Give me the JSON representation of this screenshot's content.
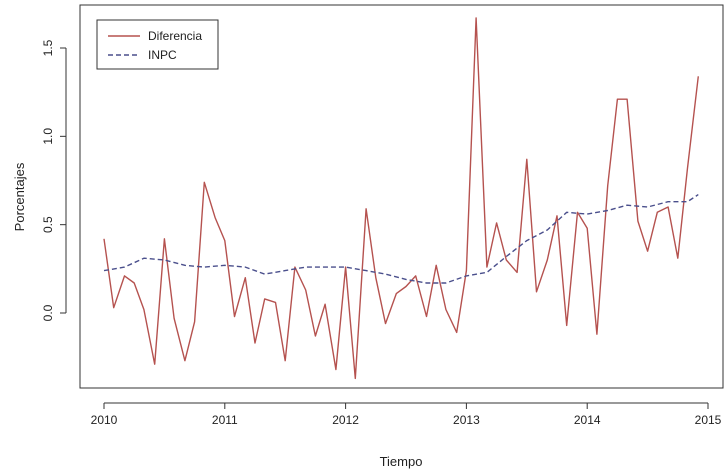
{
  "chart_data": {
    "type": "line",
    "title": "",
    "xlabel": "Tiempo",
    "ylabel": "Porcentajes",
    "xlim": [
      2010,
      2015
    ],
    "ylim": [
      -0.4,
      1.7
    ],
    "x_ticks": [
      2010,
      2011,
      2012,
      2013,
      2014,
      2015
    ],
    "x_tick_labels": [
      "2010",
      "2011",
      "2012",
      "2013",
      "2014",
      "2015"
    ],
    "y_ticks": [
      0.0,
      0.5,
      1.0,
      1.5
    ],
    "y_tick_labels": [
      "0.0",
      "0.5",
      "1.0",
      "1.5"
    ],
    "legend_position": "top-left",
    "series": [
      {
        "name": "Diferencia",
        "color": "#b5524f",
        "dash": "solid",
        "x": [
          2010.0,
          2010.08,
          2010.17,
          2010.25,
          2010.33,
          2010.42,
          2010.5,
          2010.58,
          2010.67,
          2010.75,
          2010.83,
          2010.92,
          2011.0,
          2011.08,
          2011.17,
          2011.25,
          2011.33,
          2011.42,
          2011.5,
          2011.58,
          2011.67,
          2011.75,
          2011.83,
          2011.92,
          2012.0,
          2012.08,
          2012.17,
          2012.25,
          2012.33,
          2012.42,
          2012.5,
          2012.58,
          2012.67,
          2012.75,
          2012.83,
          2012.92,
          2013.0,
          2013.08,
          2013.17,
          2013.25,
          2013.33,
          2013.42,
          2013.5,
          2013.58,
          2013.67,
          2013.75,
          2013.83,
          2013.92,
          2014.0,
          2014.08,
          2014.17,
          2014.25,
          2014.33,
          2014.42,
          2014.5,
          2014.58,
          2014.67,
          2014.75,
          2014.83,
          2014.92
        ],
        "values": [
          0.42,
          0.03,
          0.21,
          0.17,
          0.02,
          -0.29,
          0.42,
          -0.03,
          -0.27,
          -0.05,
          0.74,
          0.54,
          0.41,
          -0.02,
          0.2,
          -0.17,
          0.08,
          0.06,
          -0.27,
          0.26,
          0.13,
          -0.13,
          0.05,
          -0.32,
          0.26,
          -0.37,
          0.59,
          0.2,
          -0.06,
          0.11,
          0.15,
          0.21,
          -0.02,
          0.27,
          0.02,
          -0.11,
          0.24,
          1.67,
          0.26,
          0.51,
          0.3,
          0.23,
          0.87,
          0.12,
          0.3,
          0.55,
          -0.07,
          0.57,
          0.48,
          -0.12,
          0.72,
          1.21,
          1.21,
          0.52,
          0.35,
          0.57,
          0.6,
          0.31,
          0.82,
          1.34
        ]
      },
      {
        "name": "INPC",
        "color": "#4a4f8c",
        "dash": "dashed",
        "x": [
          2010.0,
          2010.17,
          2010.33,
          2010.5,
          2010.67,
          2010.83,
          2011.0,
          2011.17,
          2011.33,
          2011.5,
          2011.67,
          2011.83,
          2012.0,
          2012.17,
          2012.33,
          2012.5,
          2012.67,
          2012.83,
          2013.0,
          2013.17,
          2013.33,
          2013.5,
          2013.67,
          2013.83,
          2014.0,
          2014.17,
          2014.33,
          2014.5,
          2014.67,
          2014.83,
          2014.92
        ],
        "values": [
          0.24,
          0.26,
          0.31,
          0.3,
          0.27,
          0.26,
          0.27,
          0.26,
          0.22,
          0.24,
          0.26,
          0.26,
          0.26,
          0.24,
          0.22,
          0.19,
          0.17,
          0.17,
          0.21,
          0.23,
          0.32,
          0.41,
          0.47,
          0.57,
          0.56,
          0.58,
          0.61,
          0.6,
          0.63,
          0.63,
          0.67
        ]
      }
    ]
  }
}
